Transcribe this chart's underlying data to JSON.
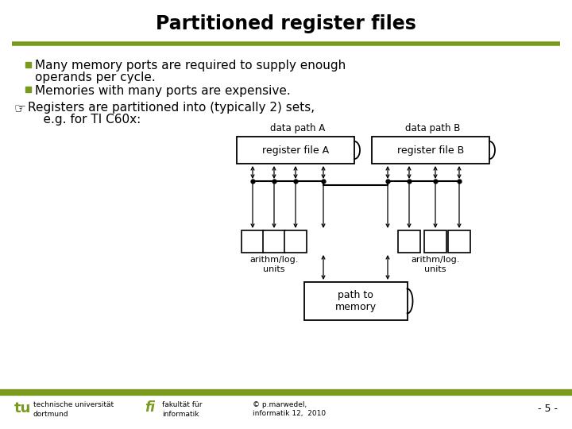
{
  "title": "Partitioned register files",
  "title_fontsize": 17,
  "title_fontweight": "bold",
  "bg_color": "#ffffff",
  "olive_line_color": "#7a9a1f",
  "text_color": "#000000",
  "bullet_color": "#7a9a1f",
  "bullet1_line1": "Many memory ports are required to supply enough",
  "bullet1_line2": "operands per cycle.",
  "bullet2": "Memories with many ports are expensive.",
  "finger_text1": "Registers are partitioned into (typically 2) sets,",
  "finger_text2": "    e.g. for TI C60x:",
  "footer_left1": "technische universität",
  "footer_left2": "dortmund",
  "footer_mid1": "fakultät für",
  "footer_mid2": "informatik",
  "footer_right1": "© p.marwedel,",
  "footer_right2": "informatik 12,  2010",
  "footer_page": "- 5 -",
  "reg_file_A_label": "register file A",
  "reg_file_B_label": "register file B",
  "data_path_A": "data path A",
  "data_path_B": "data path B",
  "arith_units_label": "arithm/log.\nunits",
  "path_memory_label": "path to\nmemory"
}
